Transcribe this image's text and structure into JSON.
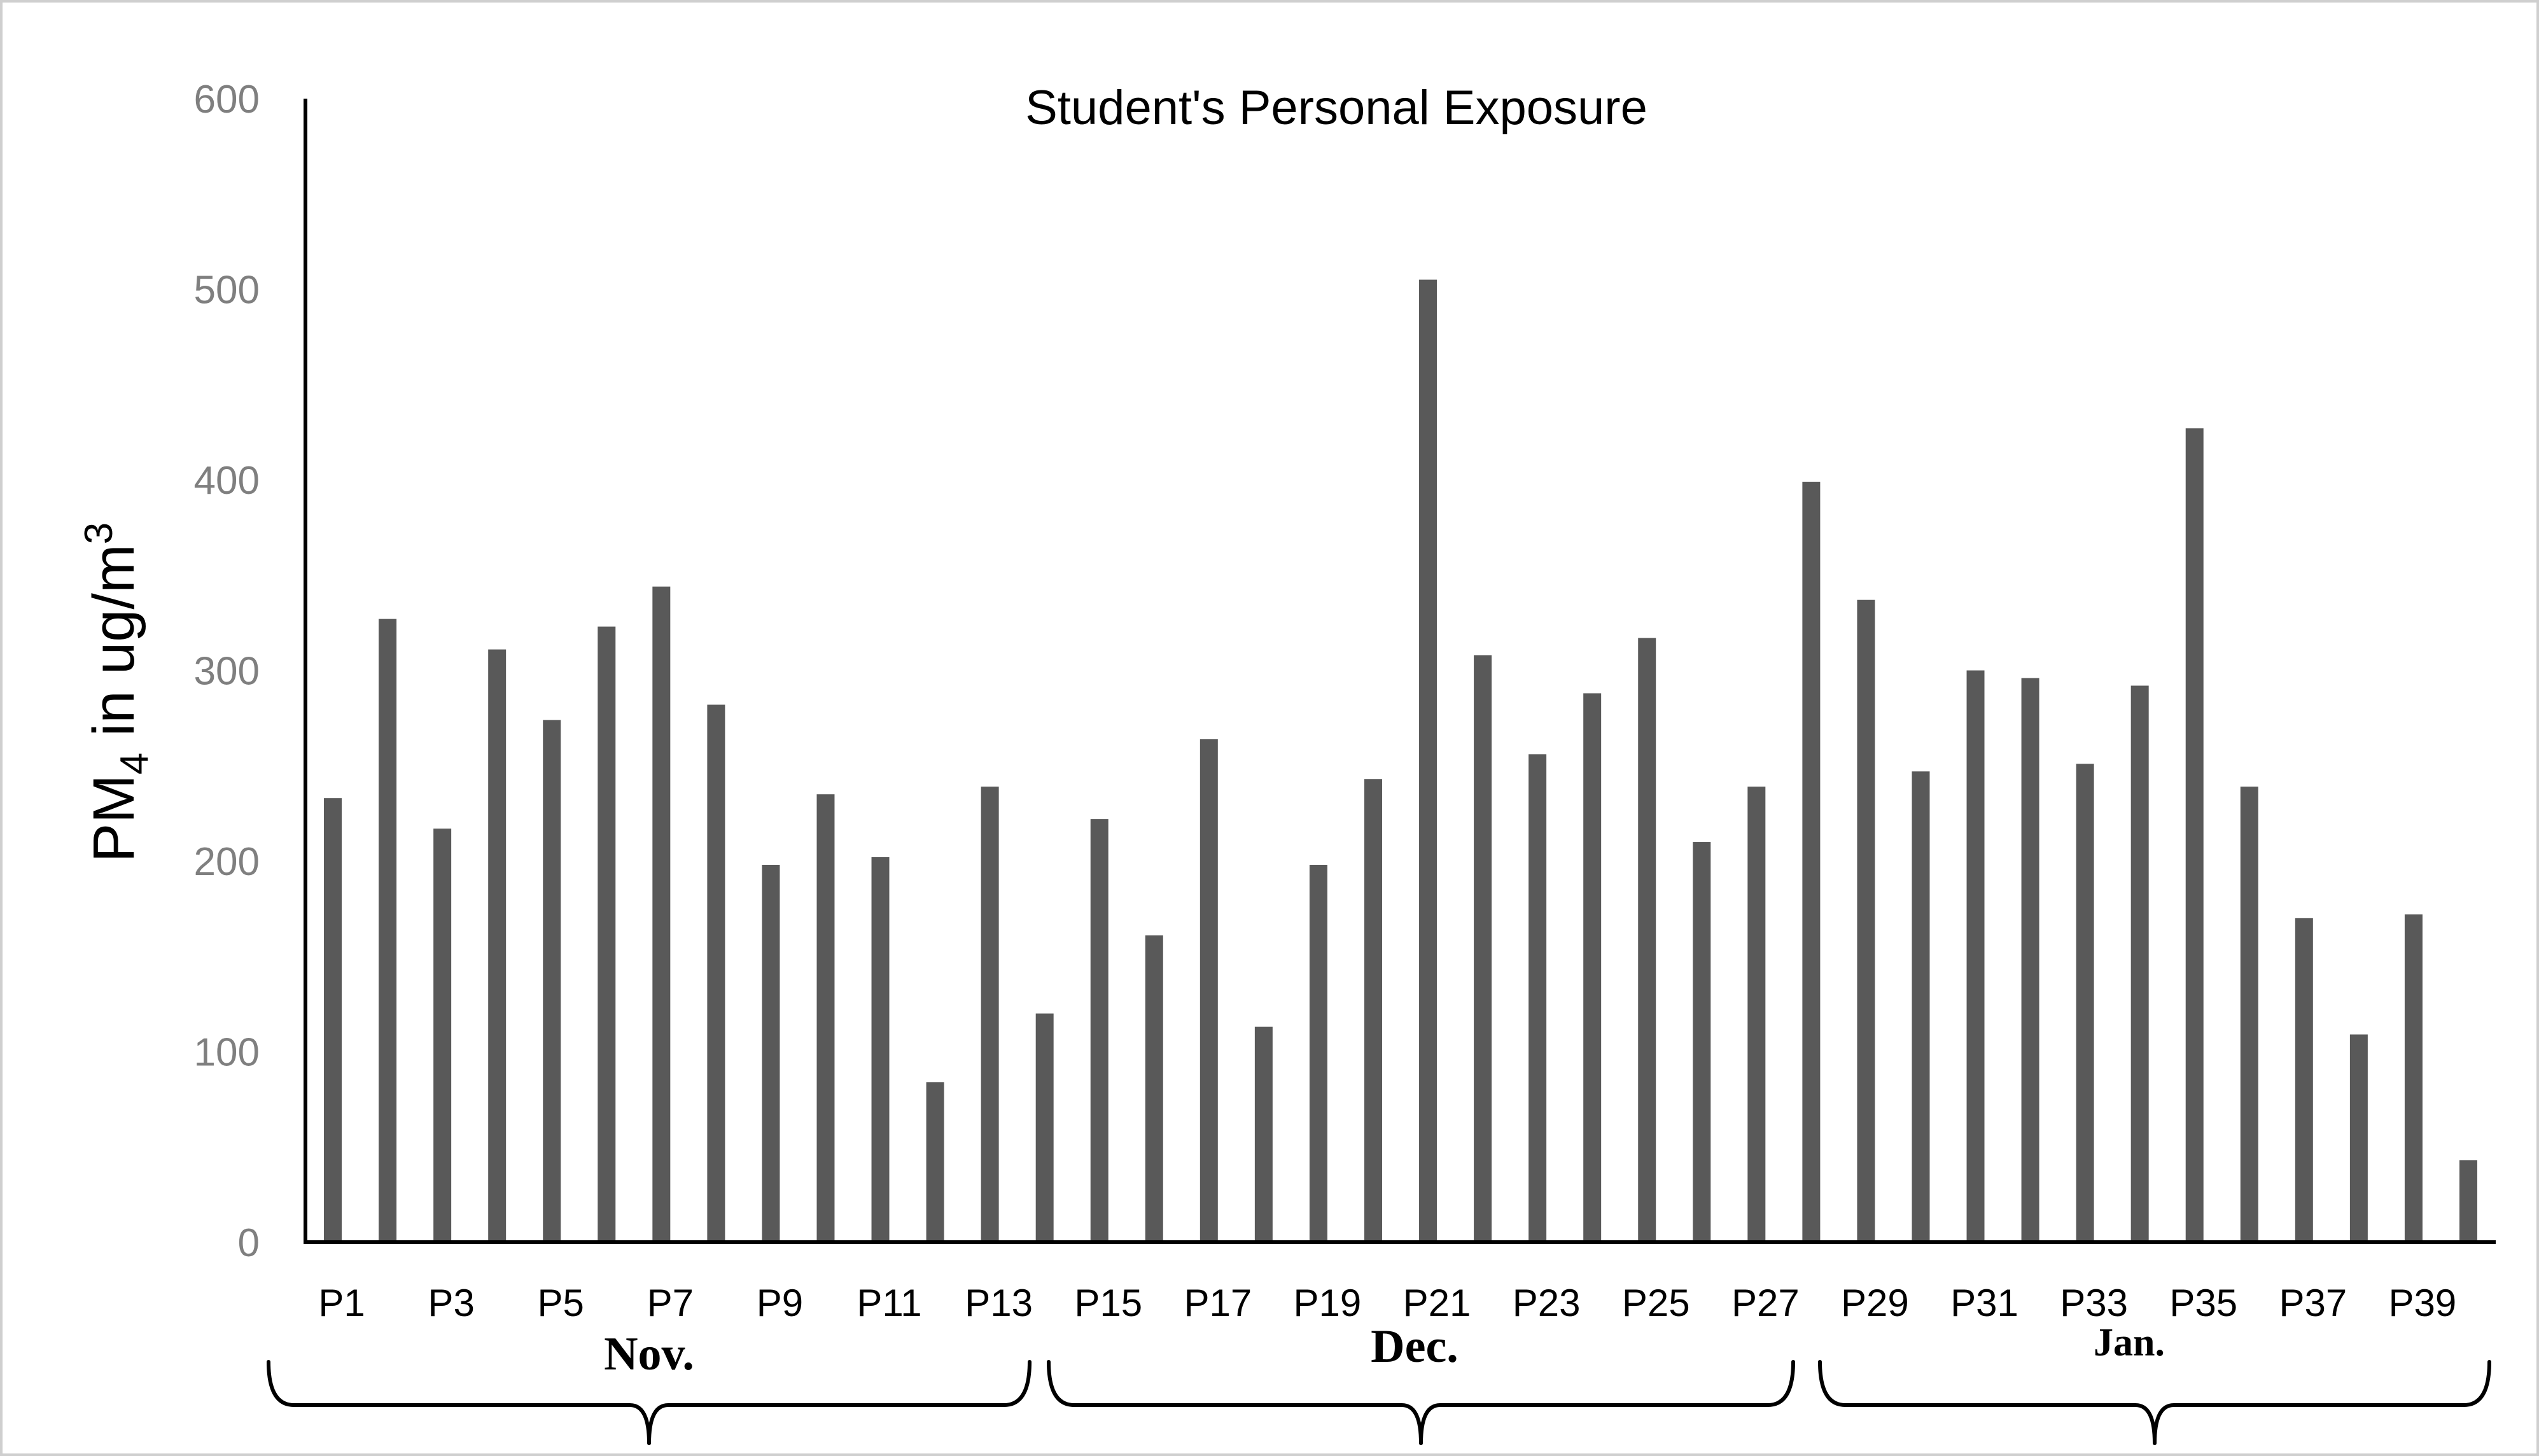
{
  "chart_data": {
    "type": "bar",
    "title": "Student's Personal Exposure",
    "ylabel": {
      "main": "PM",
      "sub": "4",
      "rest": " in ug/m",
      "sup": "3"
    },
    "ylim": [
      0,
      600
    ],
    "yticks": [
      0,
      100,
      200,
      300,
      400,
      500,
      600
    ],
    "categories": [
      "P1",
      "P2",
      "P3",
      "P4",
      "P5",
      "P6",
      "P7",
      "P8",
      "P9",
      "P10",
      "P11",
      "P12",
      "P13",
      "P14",
      "P15",
      "P16",
      "P17",
      "P18",
      "P19",
      "P20",
      "P21",
      "P22",
      "P23",
      "P24",
      "P25",
      "P26",
      "P27",
      "P28",
      "P29",
      "P30",
      "P31",
      "P32",
      "P33",
      "P34",
      "P35",
      "P36",
      "P37",
      "P38",
      "P39",
      "P40"
    ],
    "visible_tick_labels": [
      "P1",
      "P3",
      "P5",
      "P7",
      "P9",
      "P11",
      "P13",
      "P15",
      "P17",
      "P19",
      "P21",
      "P23",
      "P25",
      "P27",
      "P29",
      "P31",
      "P33",
      "P35",
      "P37",
      "P39"
    ],
    "values": [
      233,
      327,
      217,
      311,
      274,
      323,
      344,
      282,
      198,
      235,
      202,
      84,
      239,
      120,
      222,
      161,
      264,
      113,
      198,
      243,
      505,
      308,
      256,
      288,
      317,
      210,
      239,
      399,
      337,
      247,
      300,
      296,
      251,
      292,
      427,
      239,
      170,
      109,
      172,
      43
    ],
    "groups": [
      {
        "label": "Nov.",
        "start": 0,
        "end": 13
      },
      {
        "label": "Dec.",
        "start": 14,
        "end": 27
      },
      {
        "label": "Jan.",
        "start": 28,
        "end": 39
      }
    ],
    "bar_color": "#595959",
    "grid": false,
    "legend": "none"
  }
}
